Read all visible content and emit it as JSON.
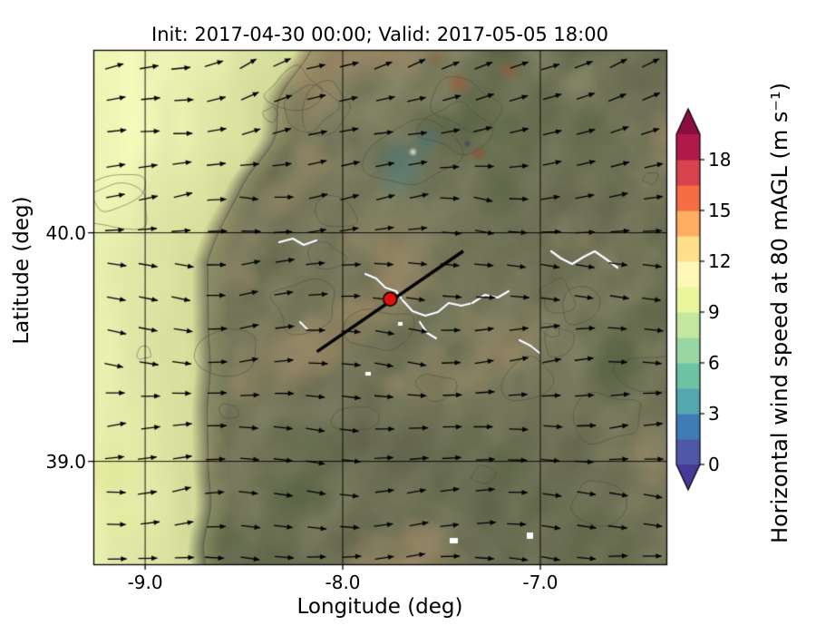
{
  "chart_data": {
    "type": "heatmap",
    "title": "Init: 2017-04-30 00:00; Valid: 2017-05-05 18:00",
    "xlabel": "Longitude (deg)",
    "ylabel": "Latitude (deg)",
    "x_ticks": [
      -9.0,
      -8.0,
      -7.0
    ],
    "x_tick_labels": [
      "-9.0",
      "-8.0",
      "-7.0"
    ],
    "y_ticks": [
      40.0,
      39.0
    ],
    "y_tick_labels": [
      "40.0",
      "39.0"
    ],
    "xlim": [
      -9.262,
      -6.362
    ],
    "ylim": [
      38.55,
      40.8
    ],
    "grid": true,
    "colorbar": {
      "label": "Horizontal wind speed at 80 mAGL (m s⁻¹)",
      "ticks": [
        0,
        3,
        6,
        9,
        12,
        15,
        18
      ],
      "tick_labels": [
        "0",
        "3",
        "6",
        "9",
        "12",
        "15",
        "18"
      ],
      "vmin": 0,
      "vmax": 19.5,
      "level_step": 1.5,
      "extend": "both",
      "colors_low_to_high": [
        "#4f58a8",
        "#3f7cb5",
        "#55a7b0",
        "#6ec3a5",
        "#9ad6a4",
        "#c3e79f",
        "#eaf69c",
        "#fdf8b8",
        "#fee08b",
        "#fdae61",
        "#f46d43",
        "#d8434e",
        "#b01a4a"
      ],
      "under_color": "#473a97",
      "over_color": "#8c0e41"
    },
    "field_summary": {
      "offshore_atlantic_west": "about 8-10 m/s, pale yellow band along and off the west coast",
      "inland_plateau": "about 4-7 m/s, olive/green tones blended with terrain shading",
      "local_maxima_north": "about 12-16 m/s, small orange/red patches in the upper middle",
      "local_minima_north": "about 1-3 m/s, small blue/teal patches in the upper middle"
    },
    "overlays": {
      "quiver": {
        "description": "Black wind-vector arrows on a regular grid, pointing mostly eastward (westerly flow), tilting slightly northeastward near the top of the map",
        "approx_grid": "17 x 16 arrows"
      },
      "transect_line": {
        "lon": [
          -8.13,
          -7.39
        ],
        "lat": [
          39.48,
          39.92
        ],
        "color": "#000000"
      },
      "site_marker": {
        "lon": -7.76,
        "lat": 39.71,
        "style": "filled circle",
        "fill": "#e01010",
        "edge": "#000000"
      }
    }
  }
}
